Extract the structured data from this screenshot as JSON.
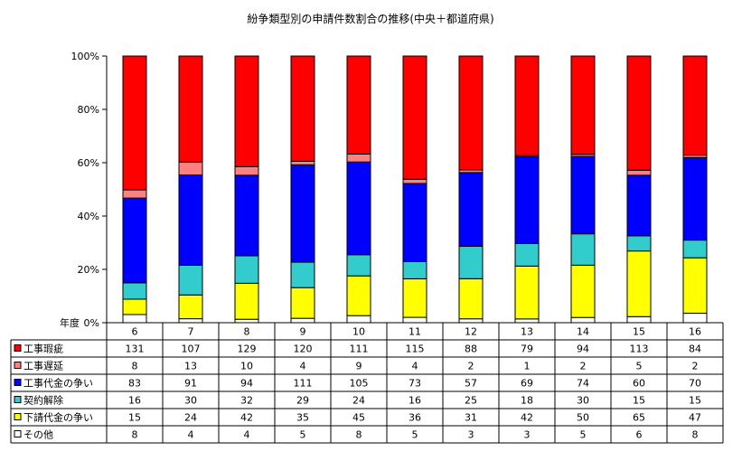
{
  "chart_data": {
    "type": "bar",
    "stacked": "percent",
    "title": "紛争類型別の申請件数割合の推移(中央＋都道府県)",
    "xlabel": "年度",
    "ylabel": "",
    "ylim": [
      0,
      100
    ],
    "yticks": [
      "0%",
      "20%",
      "40%",
      "60%",
      "80%",
      "100%"
    ],
    "grid": false,
    "legend": "table-below",
    "categories": [
      "6",
      "7",
      "8",
      "9",
      "10",
      "11",
      "12",
      "13",
      "14",
      "15",
      "16"
    ],
    "series": [
      {
        "name": "その他",
        "color": "#ffffff",
        "values": [
          8,
          4,
          4,
          5,
          8,
          5,
          3,
          3,
          5,
          6,
          8
        ]
      },
      {
        "name": "下請代金の争い",
        "color": "#ffff00",
        "values": [
          15,
          24,
          42,
          35,
          45,
          36,
          31,
          42,
          50,
          65,
          47
        ]
      },
      {
        "name": "契約解除",
        "color": "#33cccc",
        "values": [
          16,
          30,
          32,
          29,
          24,
          16,
          25,
          18,
          30,
          15,
          15
        ]
      },
      {
        "name": "工事代金の争い",
        "color": "#0000ff",
        "values": [
          83,
          91,
          94,
          111,
          105,
          73,
          57,
          69,
          74,
          60,
          70
        ]
      },
      {
        "name": "工事遅延",
        "color": "#ff8080",
        "values": [
          8,
          13,
          10,
          4,
          9,
          4,
          2,
          1,
          2,
          5,
          2
        ]
      },
      {
        "name": "工事瑕疵",
        "color": "#ff0000",
        "values": [
          131,
          107,
          129,
          120,
          111,
          115,
          88,
          79,
          94,
          113,
          84
        ]
      }
    ]
  }
}
